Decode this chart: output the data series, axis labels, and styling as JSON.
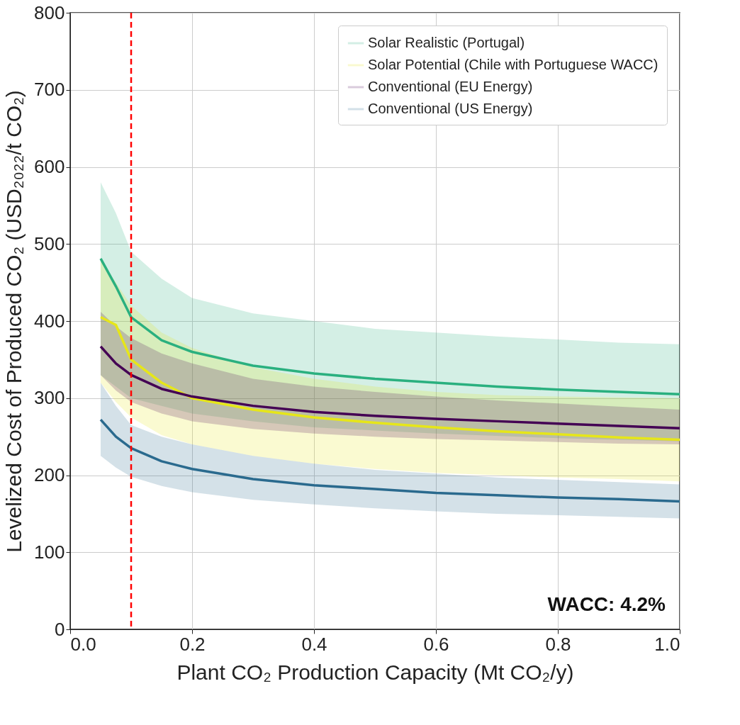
{
  "chart_data": {
    "type": "line",
    "xlabel": "Plant CO₂ Production Capacity (Mt CO₂/y)",
    "ylabel": "Levelized Cost of Produced CO₂ (USD₂₀₂₂/t CO₂)",
    "x": [
      0.05,
      0.075,
      0.1,
      0.15,
      0.2,
      0.3,
      0.4,
      0.5,
      0.6,
      0.7,
      0.8,
      0.9,
      1.0
    ],
    "series": [
      {
        "name": "Solar Realistic (Portugal)",
        "color": "#2ab07f",
        "values": [
          481,
          445,
          405,
          375,
          360,
          342,
          332,
          325,
          320,
          315,
          311,
          308,
          305
        ],
        "lower": [
          330,
          315,
          300,
          290,
          280,
          270,
          262,
          258,
          254,
          251,
          248,
          246,
          244
        ],
        "upper": [
          580,
          540,
          490,
          455,
          430,
          410,
          400,
          390,
          385,
          380,
          376,
          372,
          370
        ]
      },
      {
        "name": "Solar Potential (Chile with Portuguese WACC)",
        "color": "#e6e619",
        "values": [
          405,
          395,
          350,
          320,
          300,
          285,
          275,
          268,
          262,
          257,
          253,
          249,
          246
        ],
        "lower": [
          320,
          295,
          275,
          252,
          240,
          225,
          215,
          208,
          203,
          200,
          197,
          195,
          192
        ],
        "upper": [
          480,
          450,
          420,
          385,
          365,
          340,
          325,
          315,
          308,
          304,
          302,
          301,
          300
        ]
      },
      {
        "name": "Conventional (EU Energy)",
        "color": "#440154",
        "values": [
          367,
          345,
          330,
          312,
          302,
          290,
          282,
          277,
          273,
          270,
          267,
          264,
          261
        ],
        "lower": [
          330,
          310,
          295,
          280,
          270,
          260,
          254,
          250,
          247,
          245,
          243,
          241,
          240
        ],
        "upper": [
          412,
          393,
          378,
          358,
          345,
          325,
          315,
          308,
          302,
          297,
          293,
          289,
          285
        ]
      },
      {
        "name": "Conventional (US Energy)",
        "color": "#2a6a8e",
        "values": [
          272,
          250,
          235,
          218,
          208,
          195,
          187,
          182,
          177,
          174,
          171,
          169,
          166
        ],
        "lower": [
          225,
          210,
          198,
          186,
          178,
          168,
          162,
          157,
          153,
          150,
          148,
          146,
          144
        ],
        "upper": [
          320,
          290,
          265,
          250,
          240,
          225,
          215,
          207,
          202,
          197,
          194,
          191,
          188
        ]
      }
    ],
    "xlim": [
      0.0,
      1.0
    ],
    "xticks": [
      {
        "value": 0.0,
        "label": "0.0"
      },
      0.2,
      0.4,
      0.6,
      0.8,
      {
        "value": 1.0,
        "label": "1.0"
      }
    ],
    "ylim": [
      0,
      800
    ],
    "yticks": [
      0,
      100,
      200,
      300,
      400,
      500,
      600,
      700,
      800
    ],
    "ref_lines": [
      {
        "axis": "x",
        "value": 0.1,
        "color": "#ff0000",
        "line_style": "dashed"
      }
    ],
    "annotations": [
      "WACC: 4.2%"
    ],
    "grid": true,
    "legend": "top right",
    "line_style": "solid",
    "marker": "none"
  }
}
